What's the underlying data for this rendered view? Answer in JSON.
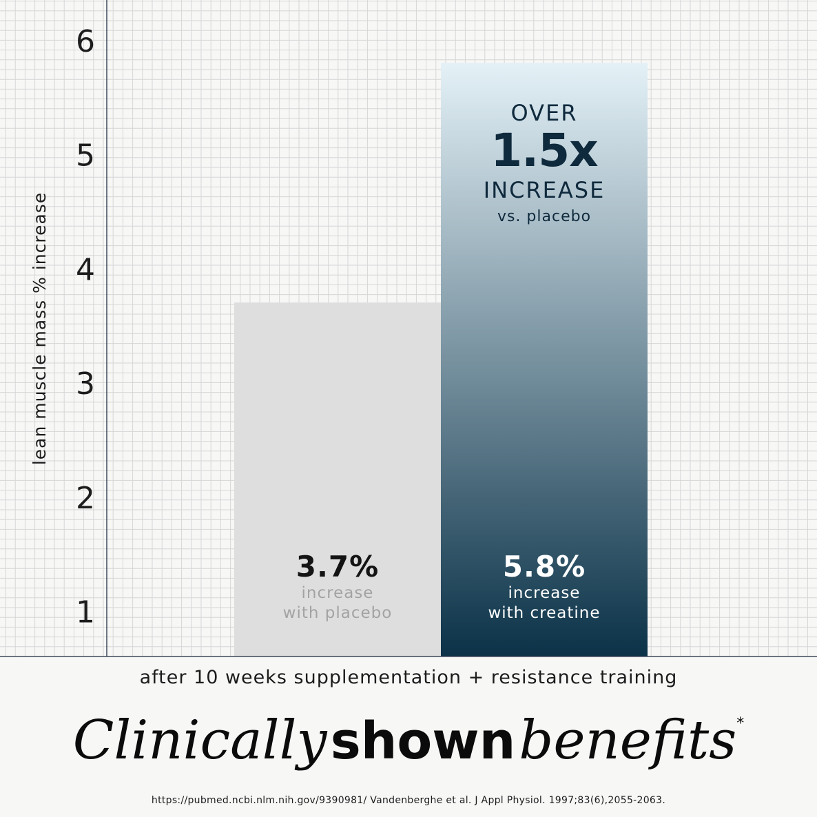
{
  "chart_data": {
    "type": "bar",
    "categories": [
      "with placebo",
      "with creatine"
    ],
    "values": [
      3.7,
      5.8
    ],
    "ylabel": "lean muscle mass % increase",
    "xlabel": "after 10 weeks supplementation + resistance training",
    "yticks": [
      1,
      2,
      3,
      4,
      5,
      6
    ],
    "ylim": [
      0.6,
      6.35
    ],
    "grid": true,
    "bar_colors": [
      "#dedede",
      "#0b3248"
    ],
    "gradient_top": "#e4f1f7"
  },
  "bars": {
    "placebo": {
      "value_label": "3.7%",
      "line1": "increase",
      "line2": "with placebo"
    },
    "creatine": {
      "value_label": "5.8%",
      "line1": "increase",
      "line2": "with creatine"
    }
  },
  "callout": {
    "over": "OVER",
    "multiplier": "1.5x",
    "increase": "INCREASE",
    "vs": "vs. placebo"
  },
  "headline": {
    "part1": "Clinically",
    "part2": "shown",
    "part3": "benefits",
    "asterisk": "*"
  },
  "citation": "https://pubmed.ncbi.nlm.nih.gov/9390981/ Vandenberghe et al. J Appl Physiol. 1997;83(6),2055-2063."
}
